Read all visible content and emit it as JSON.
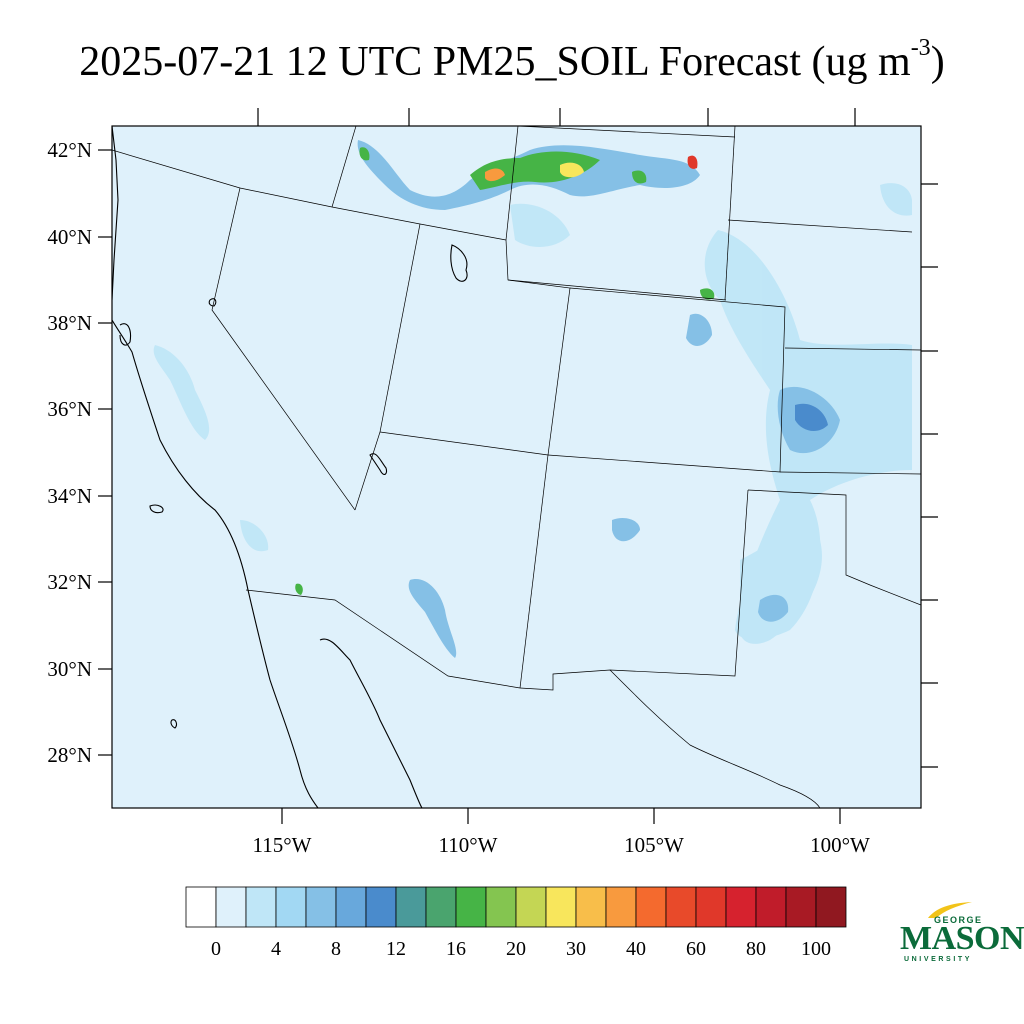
{
  "title": {
    "main": "2025-07-21 12 UTC PM25_SOIL Forecast (ug m",
    "superscript": "-3",
    "close": ")"
  },
  "map": {
    "background_color": "#dff1fb",
    "border_color": "#000000",
    "lat_labels": [
      "42°N",
      "40°N",
      "38°N",
      "36°N",
      "34°N",
      "32°N",
      "30°N",
      "28°N"
    ],
    "lon_labels": [
      "115°W",
      "110°W",
      "105°W",
      "100°W"
    ]
  },
  "colorbar": {
    "colors": [
      "#ffffff",
      "#dff1fb",
      "#bfe6f7",
      "#a2d8f3",
      "#85c0e6",
      "#68a8dc",
      "#4a8bcc",
      "#4a9a9a",
      "#4aa46e",
      "#46b446",
      "#84c550",
      "#c4d654",
      "#f8e65c",
      "#f8be4a",
      "#f89a3e",
      "#f46a2e",
      "#e84a2a",
      "#e0382a",
      "#d6222e",
      "#c01c2a",
      "#a81a24",
      "#901820"
    ],
    "labels": [
      "0",
      "4",
      "8",
      "12",
      "16",
      "20",
      "30",
      "40",
      "60",
      "80",
      "100"
    ]
  },
  "logo": {
    "line1": "GEORGE",
    "line2": "MASON",
    "line3": "UNIVERSITY",
    "color": "#0b6b3a",
    "accent": "#f2c319"
  }
}
